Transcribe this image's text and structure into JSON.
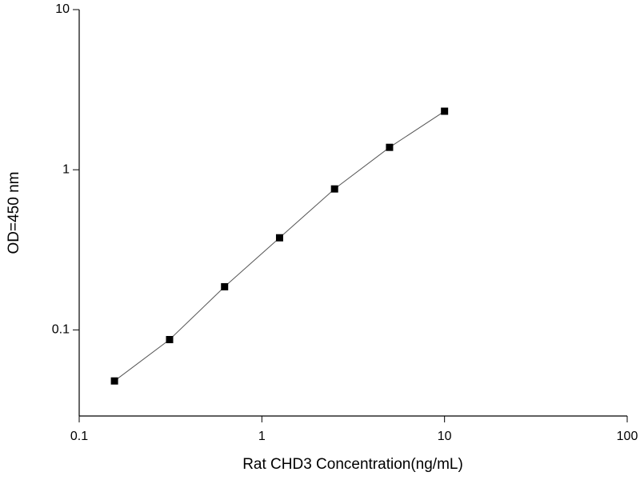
{
  "chart_data": {
    "type": "line",
    "xlabel": "Rat CHD3 Concentration(ng/mL)",
    "ylabel": "OD=450 nm",
    "xscale": "log",
    "yscale": "log",
    "xlim": [
      0.1,
      100
    ],
    "xticks": [
      0.1,
      1,
      10,
      100
    ],
    "ylim": [
      0.029,
      10
    ],
    "yticks": [
      0.1,
      1,
      10
    ],
    "x": [
      0.156,
      0.3125,
      0.625,
      1.25,
      2.5,
      5,
      10
    ],
    "series": [
      {
        "color": "#000000",
        "values": [
          0.048,
          0.087,
          0.186,
          0.376,
          0.759,
          1.38,
          2.32
        ]
      }
    ]
  }
}
